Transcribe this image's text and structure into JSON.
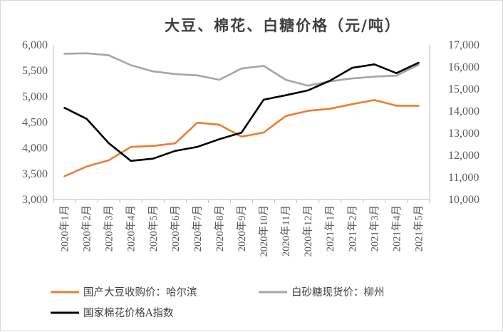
{
  "chart_data": {
    "type": "line",
    "title": "大豆、棉花、白糖价格（元/吨）",
    "categories": [
      "2020年1月",
      "2020年2月",
      "2020年3月",
      "2020年4月",
      "2020年5月",
      "2020年6月",
      "2020年7月",
      "2020年8月",
      "2020年9月",
      "2020年10月",
      "2020年11月",
      "2020年12月",
      "2021年1月",
      "2021年2月",
      "2021年3月",
      "2021年4月",
      "2021年5月"
    ],
    "left_axis": {
      "ylim": [
        3000,
        6000
      ],
      "ticks": [
        "3,000",
        "3,500",
        "4,000",
        "4,500",
        "5,000",
        "5,500",
        "6,000"
      ],
      "tick_values": [
        3000,
        3500,
        4000,
        4500,
        5000,
        5500,
        6000
      ]
    },
    "right_axis": {
      "ylim": [
        10000,
        17000
      ],
      "ticks": [
        "10,000",
        "11,000",
        "12,000",
        "13,000",
        "14,000",
        "15,000",
        "16,000",
        "17,000"
      ],
      "tick_values": [
        10000,
        11000,
        12000,
        13000,
        14000,
        15000,
        16000,
        17000
      ]
    },
    "series": [
      {
        "name": "国产大豆收购价：哈尔滨",
        "axis": "left",
        "color": "#ed7d31",
        "values": [
          3450,
          3640,
          3760,
          4020,
          4040,
          4090,
          4490,
          4450,
          4220,
          4300,
          4620,
          4720,
          4760,
          4850,
          4930,
          4820,
          4820
        ]
      },
      {
        "name": "白砂糖现货价：柳州",
        "axis": "right",
        "color": "#a5a5a5",
        "values": [
          16600,
          16620,
          16530,
          16080,
          15800,
          15680,
          15620,
          15420,
          15930,
          16050,
          15420,
          15150,
          15350,
          15480,
          15560,
          15610,
          16100
        ]
      },
      {
        "name": "国家棉花价格A指数",
        "axis": "right",
        "color": "#000000",
        "values": [
          14150,
          13650,
          12550,
          11750,
          11850,
          12200,
          12380,
          12730,
          13030,
          14520,
          14720,
          14940,
          15380,
          15960,
          16120,
          15720,
          16190
        ]
      }
    ],
    "legend_position": "bottom",
    "grid": false
  }
}
